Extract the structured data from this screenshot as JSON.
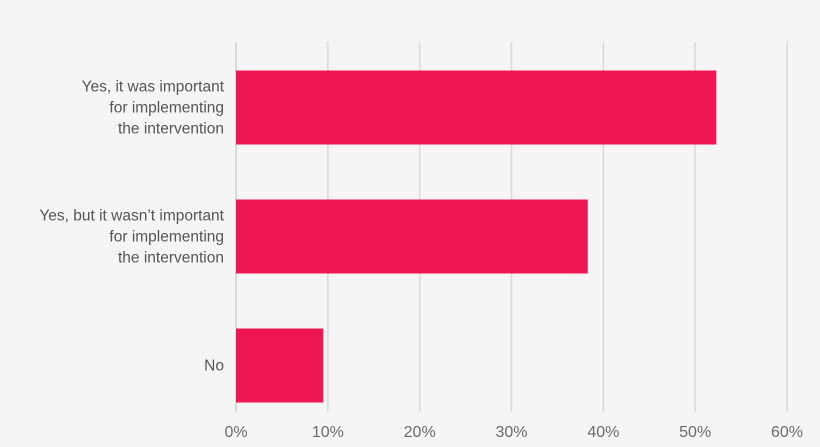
{
  "chart_data": {
    "type": "bar",
    "orientation": "horizontal",
    "title": "",
    "xlabel": "",
    "ylabel": "",
    "categories": [
      [
        "Yes, it was important",
        "for implementing",
        "the intervention"
      ],
      [
        "Yes, but it wasn’t important",
        "for implementing",
        "the intervention"
      ],
      [
        "No"
      ]
    ],
    "values": [
      52.3,
      38.3,
      9.5
    ],
    "xlim": [
      0,
      60
    ],
    "x_ticks": [
      0,
      10,
      20,
      30,
      40,
      50,
      60
    ],
    "x_tick_labels": [
      "0%",
      "10%",
      "20%",
      "30%",
      "40%",
      "50%",
      "60%"
    ],
    "grid": "vertical",
    "legend": "none",
    "bar_color": "#ef1654"
  }
}
